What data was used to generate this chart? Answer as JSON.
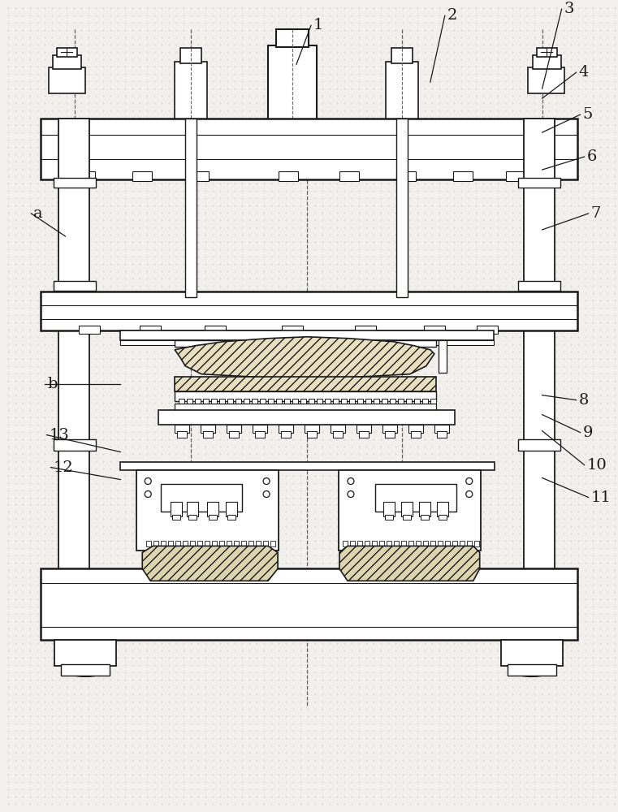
{
  "bg_color": "#f2f0ed",
  "line_color": "#1a1a1a",
  "hatch_color": "#333333",
  "dot_color": "#c8c8c8",
  "annotations": [
    [
      "1",
      383,
      30,
      365,
      78
    ],
    [
      "2",
      548,
      18,
      530,
      100
    ],
    [
      "3",
      692,
      10,
      668,
      108
    ],
    [
      "4",
      710,
      88,
      668,
      120
    ],
    [
      "5",
      715,
      140,
      668,
      162
    ],
    [
      "6",
      720,
      192,
      668,
      208
    ],
    [
      "7",
      725,
      262,
      668,
      282
    ],
    [
      "8",
      710,
      492,
      668,
      486
    ],
    [
      "9",
      715,
      532,
      668,
      510
    ],
    [
      "10",
      720,
      572,
      668,
      530
    ],
    [
      "11",
      725,
      612,
      668,
      588
    ],
    [
      "12",
      62,
      575,
      148,
      590
    ],
    [
      "13",
      57,
      535,
      148,
      556
    ],
    [
      "b",
      55,
      472,
      148,
      472
    ],
    [
      "a",
      38,
      262,
      80,
      290
    ]
  ]
}
